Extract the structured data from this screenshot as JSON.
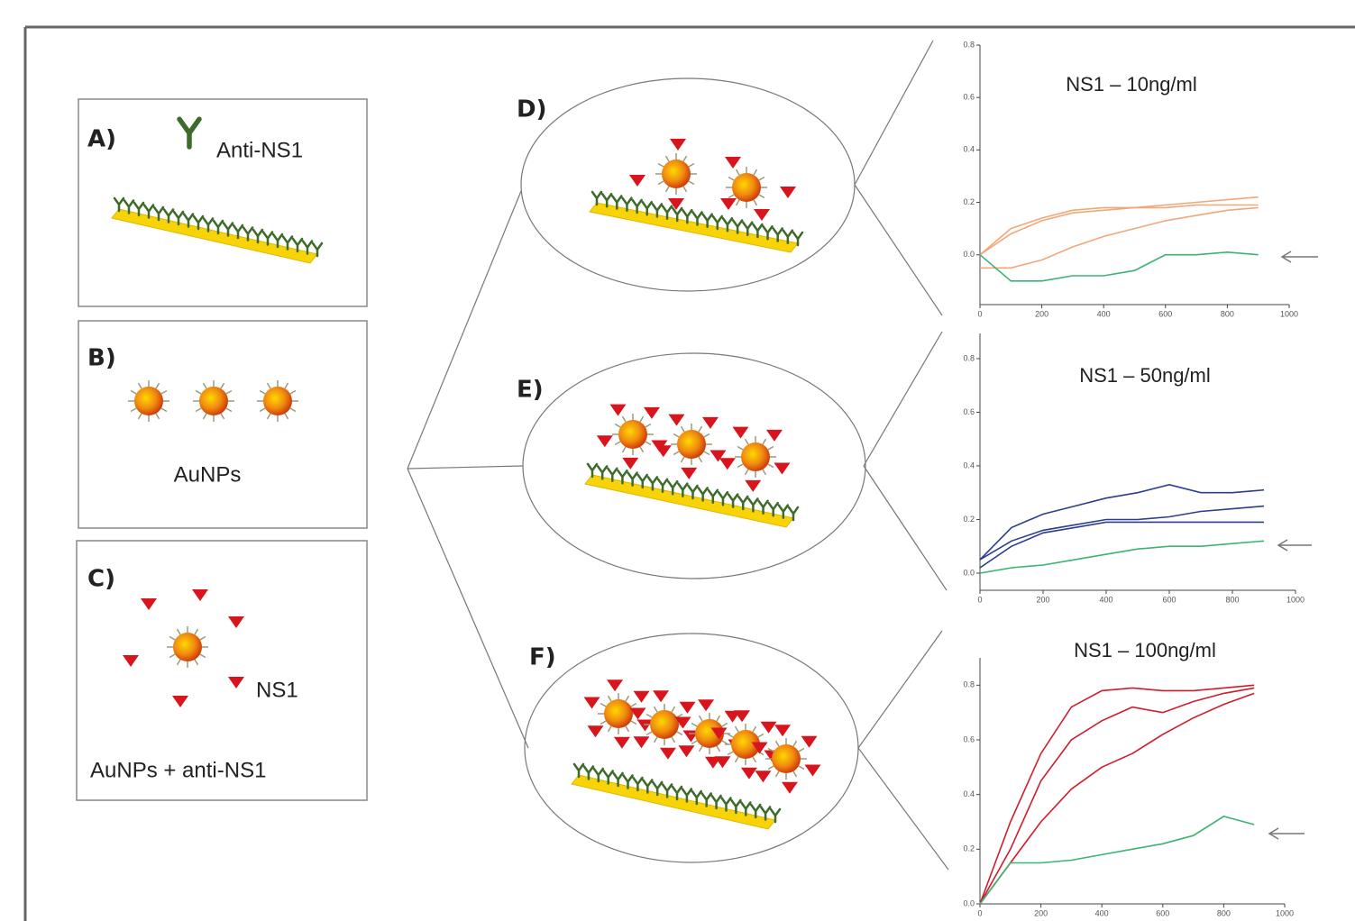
{
  "panels": [
    {
      "label": "A)",
      "texts": [
        "Anti-NS1"
      ]
    },
    {
      "label": "B)",
      "texts": [
        "AuNPs"
      ]
    },
    {
      "label": "C)",
      "texts": [
        "NS1",
        "AuNPs + anti-NS1"
      ]
    }
  ],
  "zoom_labels": [
    "D)",
    "E)",
    "F)"
  ],
  "chart_data": [
    {
      "type": "line",
      "title": "NS1 – 10ng/ml",
      "x": [
        0,
        100,
        200,
        300,
        400,
        500,
        600,
        700,
        800,
        900
      ],
      "xlim": [
        0,
        1000
      ],
      "xticks": [
        0,
        200,
        400,
        600,
        800,
        1000
      ],
      "ylim": [
        -0.19,
        0.8
      ],
      "yticks": [
        {
          "value": 0,
          "label": "0.0"
        },
        0.2,
        0.4,
        0.6,
        0.8
      ],
      "series": [
        {
          "color": "#f0a878",
          "values": [
            0.0,
            0.08,
            0.13,
            0.16,
            0.17,
            0.18,
            0.19,
            0.2,
            0.21,
            0.22
          ]
        },
        {
          "color": "#f0a878",
          "values": [
            0.0,
            0.1,
            0.14,
            0.17,
            0.18,
            0.18,
            0.18,
            0.19,
            0.19,
            0.19
          ]
        },
        {
          "color": "#f0a878",
          "values": [
            -0.05,
            -0.05,
            -0.02,
            0.03,
            0.07,
            0.1,
            0.13,
            0.15,
            0.17,
            0.18
          ]
        },
        {
          "color": "#3cb371",
          "values": [
            0.0,
            -0.1,
            -0.1,
            -0.08,
            -0.08,
            -0.06,
            0.0,
            0.0,
            0.01,
            0.0
          ]
        }
      ]
    },
    {
      "type": "line",
      "title": "NS1 – 50ng/ml",
      "x": [
        0,
        100,
        200,
        300,
        400,
        500,
        600,
        700,
        800,
        900
      ],
      "xlim": [
        0,
        1000
      ],
      "xticks": [
        0,
        200,
        400,
        600,
        800,
        1000
      ],
      "ylim": [
        -0.064,
        0.894
      ],
      "yticks": [
        {
          "value": 0,
          "label": "0.0"
        },
        0.2,
        0.4,
        0.6,
        0.8
      ],
      "series": [
        {
          "color": "#2c3e8c",
          "values": [
            0.05,
            0.17,
            0.22,
            0.25,
            0.28,
            0.3,
            0.33,
            0.3,
            0.3,
            0.31
          ]
        },
        {
          "color": "#2c3e8c",
          "values": [
            0.05,
            0.12,
            0.16,
            0.18,
            0.2,
            0.2,
            0.21,
            0.23,
            0.24,
            0.25
          ]
        },
        {
          "color": "#2c3e8c",
          "values": [
            0.02,
            0.1,
            0.15,
            0.17,
            0.19,
            0.19,
            0.19,
            0.19,
            0.19,
            0.19
          ]
        },
        {
          "color": "#3cb371",
          "values": [
            0.0,
            0.02,
            0.03,
            0.05,
            0.07,
            0.09,
            0.1,
            0.1,
            0.11,
            0.12
          ]
        }
      ]
    },
    {
      "type": "line",
      "title": "NS1 – 100ng/ml",
      "x": [
        0,
        100,
        200,
        300,
        400,
        500,
        600,
        700,
        800,
        900
      ],
      "xlim": [
        0,
        1000
      ],
      "xticks": [
        0,
        200,
        400,
        600,
        800,
        1000
      ],
      "ylim": [
        0,
        0.9
      ],
      "yticks": [
        {
          "value": 0,
          "label": "0.0"
        },
        0.2,
        0.4,
        0.6,
        0.8
      ],
      "series": [
        {
          "color": "#d01c2a",
          "values": [
            0.0,
            0.3,
            0.55,
            0.72,
            0.78,
            0.79,
            0.78,
            0.78,
            0.79,
            0.8
          ]
        },
        {
          "color": "#d01c2a",
          "values": [
            0.0,
            0.2,
            0.45,
            0.6,
            0.67,
            0.72,
            0.7,
            0.74,
            0.77,
            0.79
          ]
        },
        {
          "color": "#d01c2a",
          "values": [
            0.0,
            0.15,
            0.3,
            0.42,
            0.5,
            0.55,
            0.62,
            0.68,
            0.73,
            0.77
          ]
        },
        {
          "color": "#3cb371",
          "values": [
            0.0,
            0.15,
            0.15,
            0.16,
            0.18,
            0.2,
            0.22,
            0.25,
            0.32,
            0.29
          ]
        }
      ]
    }
  ]
}
